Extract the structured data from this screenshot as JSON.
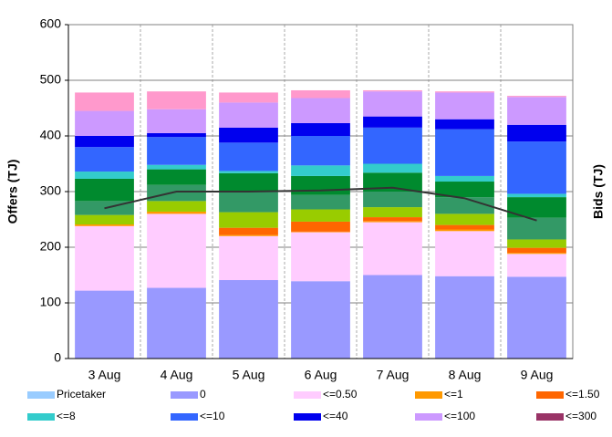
{
  "chart_data": {
    "type": "bar",
    "stacked": true,
    "y_label": "Offers (TJ)",
    "y2_label": "Bids (TJ)",
    "categories": [
      "3 Aug",
      "4 Aug",
      "5 Aug",
      "6 Aug",
      "7 Aug",
      "8 Aug",
      "9 Aug"
    ],
    "ylim": [
      0,
      600
    ],
    "yticks": [
      0,
      100,
      200,
      300,
      400,
      500,
      600
    ],
    "grid": true,
    "series": [
      {
        "name": "Pricetaker",
        "color": "#99ccff",
        "values": [
          0,
          0,
          0,
          0,
          0,
          0,
          0
        ]
      },
      {
        "name": "0",
        "color": "#9999ff",
        "values": [
          122,
          127,
          141,
          139,
          150,
          148,
          147
        ]
      },
      {
        "name": "<=0.50",
        "color": "#ffccff",
        "values": [
          116,
          133,
          79,
          88,
          95,
          81,
          41
        ]
      },
      {
        "name": "<=1",
        "color": "#ff9900",
        "values": [
          3,
          4,
          2,
          1,
          2,
          3,
          2
        ]
      },
      {
        "name": "<=1.50",
        "color": "#ff6600",
        "values": [
          0,
          0,
          13,
          18,
          7,
          8,
          9
        ]
      },
      {
        "color": "#99cc00",
        "values": [
          17,
          19,
          28,
          22,
          18,
          20,
          15
        ]
      },
      {
        "color": "#339966",
        "values": [
          25,
          29,
          37,
          26,
          28,
          30,
          39
        ]
      },
      {
        "color": "#008a2e",
        "values": [
          40,
          28,
          33,
          34,
          34,
          28,
          37
        ]
      },
      {
        "name": "<=8",
        "color": "#33cccc",
        "values": [
          13,
          8,
          4,
          19,
          16,
          10,
          6
        ]
      },
      {
        "name": "<=10",
        "color": "#3366ff",
        "values": [
          44,
          50,
          51,
          53,
          65,
          84,
          94
        ]
      },
      {
        "name": "<=40",
        "color": "#0000ee",
        "values": [
          20,
          7,
          27,
          23,
          20,
          18,
          30
        ]
      },
      {
        "name": "<=100",
        "color": "#cc99ff",
        "values": [
          45,
          43,
          45,
          45,
          45,
          48,
          50
        ]
      },
      {
        "color": "#ff99cc",
        "values": [
          33,
          32,
          18,
          14,
          2,
          2,
          2
        ]
      },
      {
        "name": "<=300",
        "color": "#993366",
        "values": [
          0,
          0,
          0,
          0,
          0,
          0,
          0
        ]
      }
    ],
    "line": {
      "color": "#333333",
      "values": [
        270,
        300,
        300,
        302,
        307,
        288,
        248
      ]
    }
  }
}
